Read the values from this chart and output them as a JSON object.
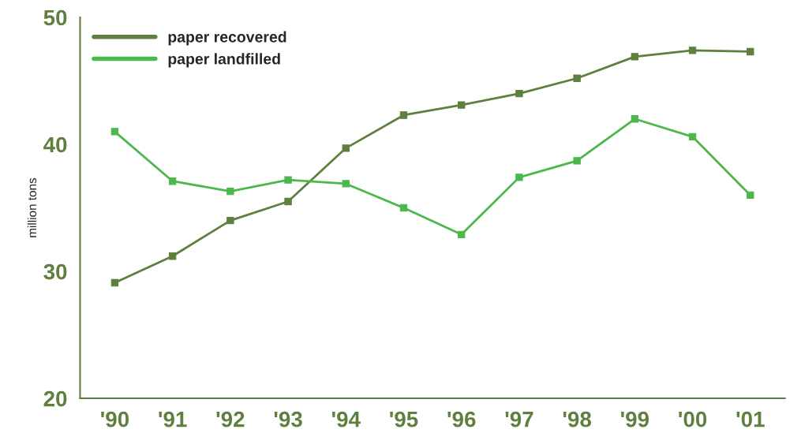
{
  "chart_data": {
    "type": "line",
    "ylabel": "million tons",
    "categories": [
      "'90",
      "'91",
      "'92",
      "'93",
      "'94",
      "'95",
      "'96",
      "'97",
      "'98",
      "'99",
      "'00",
      "'01"
    ],
    "series": [
      {
        "name": "paper recovered",
        "color": "#5f7f3f",
        "values": [
          29.1,
          31.2,
          34.0,
          35.5,
          39.7,
          42.3,
          43.1,
          44.0,
          45.2,
          46.9,
          47.4,
          47.3
        ]
      },
      {
        "name": "paper landfilled",
        "color": "#4cb84c",
        "values": [
          41.0,
          37.1,
          36.3,
          37.2,
          36.9,
          35.0,
          32.9,
          37.4,
          38.7,
          42.0,
          40.6,
          36.0
        ]
      }
    ],
    "ylim": [
      20,
      50
    ],
    "yticks": [
      20,
      30,
      40,
      50
    ],
    "grid": false,
    "legend": "top left",
    "marker": "square",
    "line_style": "solid"
  }
}
